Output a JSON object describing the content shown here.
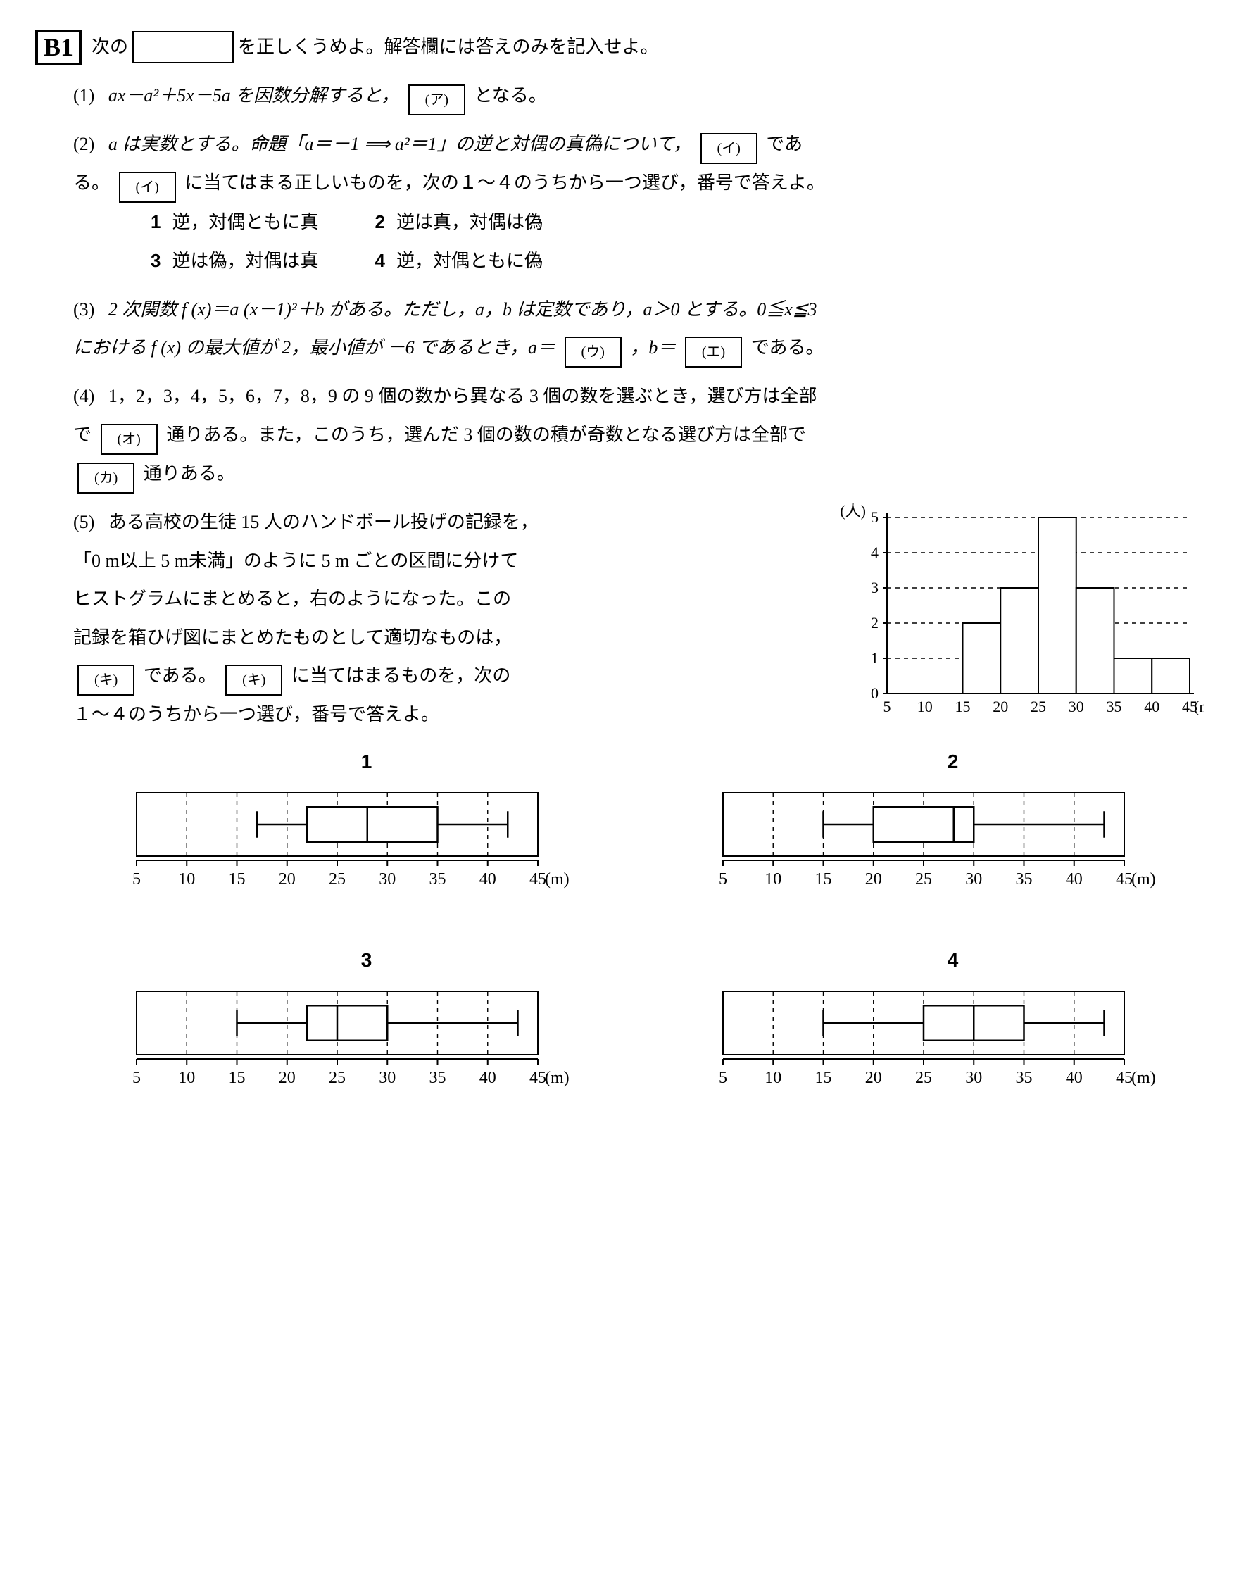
{
  "title_tag": "B1",
  "title_lead": "次の",
  "title_tail": "を正しくうめよ。解答欄には答えのみを記入せよ。",
  "q1": {
    "num": "(1)",
    "pre": "ax－a²＋5x－5a を因数分解すると，",
    "blank": "(ア)",
    "post": "となる。"
  },
  "q2": {
    "num": "(2)",
    "line1a": "a は実数とする。命題「a＝－1 ⟹ a²＝1」の逆と対偶の真偽について，",
    "blank1": "(イ)",
    "line1b": "であ",
    "line2a": "る。",
    "blank2": "(イ)",
    "line2b": "に当てはまる正しいものを，次の１～４のうちから一つ選び，番号で答えよ。",
    "choices_r1": [
      {
        "n": "1",
        "t": "逆，対偶ともに真"
      },
      {
        "n": "2",
        "t": "逆は真，対偶は偽"
      }
    ],
    "choices_r2": [
      {
        "n": "3",
        "t": "逆は偽，対偶は真"
      },
      {
        "n": "4",
        "t": "逆，対偶ともに偽"
      }
    ]
  },
  "q3": {
    "num": "(3)",
    "line1": "2 次関数 f (x)＝a (x－1)²＋b がある。ただし，a，b は定数であり，a＞0 とする。0≦x≦3",
    "line2a": "における f (x) の最大値が 2，最小値が －6 であるとき，a＝",
    "blankU": "(ウ)",
    "mid": "，b＝",
    "blankE": "(エ)",
    "line2b": "である。"
  },
  "q4": {
    "num": "(4)",
    "line1": "1，2，3，4，5，6，7，8，9 の 9 個の数から異なる 3 個の数を選ぶとき，選び方は全部",
    "line2a": "で",
    "blankO": "(オ)",
    "line2b": "通りある。また，このうち，選んだ 3 個の数の積が奇数となる選び方は全部で",
    "blankKa": "(カ)",
    "line3b": "通りある。"
  },
  "q5": {
    "num": "(5)",
    "lines": [
      "ある高校の生徒 15 人のハンドボール投げの記録を，",
      "「0 m以上 5 m未満」のように 5 m ごとの区間に分けて",
      "ヒストグラムにまとめると，右のようになった。この",
      "記録を箱ひげ図にまとめたものとして適切なものは，"
    ],
    "line5a_blank": "(キ)",
    "line5a_mid": "である。",
    "line5b_blank": "(キ)",
    "line5b_post": "に当てはまるものを，次の",
    "line6": "１～４のうちから一つ選び，番号で答えよ。"
  },
  "histogram": {
    "type": "histogram",
    "y_label": "(人)",
    "x_label": "(m)",
    "y_ticks": [
      0,
      1,
      2,
      3,
      4,
      5
    ],
    "x_ticks": [
      5,
      10,
      15,
      20,
      25,
      30,
      35,
      40,
      45
    ],
    "bars": [
      {
        "from": 15,
        "to": 20,
        "v": 2
      },
      {
        "from": 20,
        "to": 25,
        "v": 3
      },
      {
        "from": 25,
        "to": 30,
        "v": 5
      },
      {
        "from": 30,
        "to": 35,
        "v": 3
      },
      {
        "from": 35,
        "to": 40,
        "v": 1
      },
      {
        "from": 40,
        "to": 45,
        "v": 1
      }
    ],
    "axis_color": "#000000",
    "grid_color": "#000000",
    "bar_fill": "#ffffff",
    "bar_stroke": "#000000",
    "font_size": 22
  },
  "boxplots": {
    "x_ticks": [
      5,
      10,
      15,
      20,
      25,
      30,
      35,
      40,
      45
    ],
    "x_label": "(m)",
    "frame_stroke": "#000000",
    "grid_stroke": "#000000",
    "box_stroke": "#000000",
    "font_size": 24,
    "items": [
      {
        "label": "1",
        "min": 17,
        "q1": 22,
        "med": 28,
        "q3": 35,
        "max": 42
      },
      {
        "label": "2",
        "min": 15,
        "q1": 20,
        "med": 28,
        "q3": 30,
        "max": 43
      },
      {
        "label": "3",
        "min": 15,
        "q1": 22,
        "med": 25,
        "q3": 30,
        "max": 43
      },
      {
        "label": "4",
        "min": 15,
        "q1": 25,
        "med": 30,
        "q3": 35,
        "max": 43
      }
    ]
  }
}
